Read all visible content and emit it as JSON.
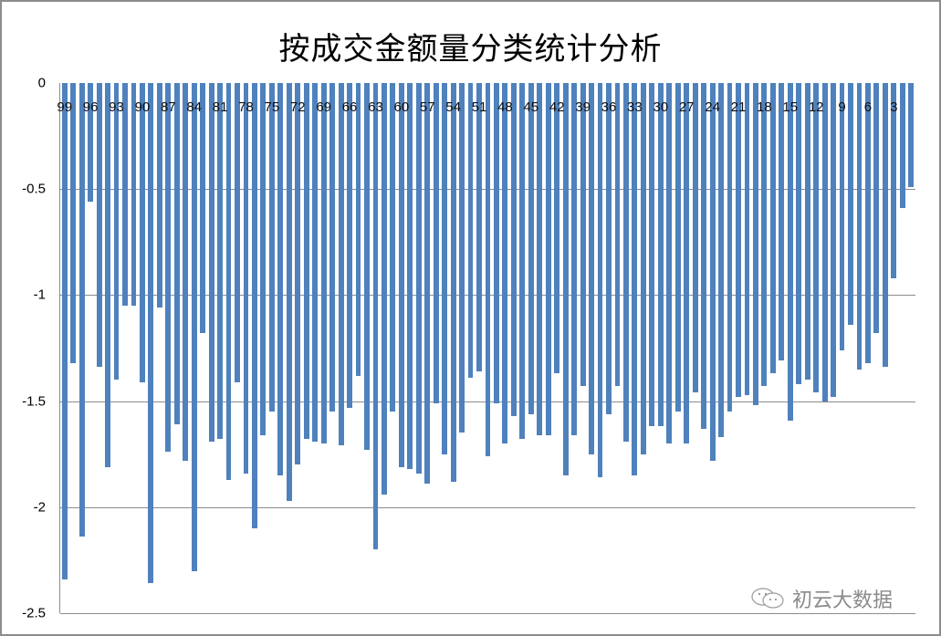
{
  "chart_data": {
    "type": "bar",
    "title": "按成交金额量分类统计分析",
    "xlabel": "",
    "ylabel": "",
    "ylim": [
      -2.5,
      0
    ],
    "yticks": [
      0,
      -0.5,
      -1,
      -1.5,
      -2,
      -2.5
    ],
    "grid": true,
    "legend": "none",
    "bar_color": "#4f81bd",
    "x_tick_labels_shown": [
      "99",
      "96",
      "93",
      "90",
      "87",
      "84",
      "81",
      "78",
      "75",
      "72",
      "69",
      "66",
      "63",
      "60",
      "57",
      "54",
      "51",
      "48",
      "45",
      "42",
      "39",
      "36",
      "33",
      "30",
      "27",
      "24",
      "21",
      "18",
      "15",
      "12",
      "9",
      "6",
      "3"
    ],
    "categories": [
      99,
      98,
      97,
      96,
      95,
      94,
      93,
      92,
      91,
      90,
      89,
      88,
      87,
      86,
      85,
      84,
      83,
      82,
      81,
      80,
      79,
      78,
      77,
      76,
      75,
      74,
      73,
      72,
      71,
      70,
      69,
      68,
      67,
      66,
      65,
      64,
      63,
      62,
      61,
      60,
      59,
      58,
      57,
      56,
      55,
      54,
      53,
      52,
      51,
      50,
      49,
      48,
      47,
      46,
      45,
      44,
      43,
      42,
      41,
      40,
      39,
      38,
      37,
      36,
      35,
      34,
      33,
      32,
      31,
      30,
      29,
      28,
      27,
      26,
      25,
      24,
      23,
      22,
      21,
      20,
      19,
      18,
      17,
      16,
      15,
      14,
      13,
      12,
      11,
      10,
      9,
      8,
      7,
      6,
      5,
      4,
      3,
      2,
      1
    ],
    "values": [
      -2.34,
      -1.32,
      -2.14,
      -0.56,
      -1.34,
      -1.81,
      -1.4,
      -1.05,
      -1.05,
      -1.41,
      -2.36,
      -1.06,
      -1.74,
      -1.61,
      -1.78,
      -2.3,
      -1.18,
      -1.69,
      -1.68,
      -1.87,
      -1.41,
      -1.84,
      -2.1,
      -1.66,
      -1.55,
      -1.85,
      -1.97,
      -1.8,
      -1.68,
      -1.69,
      -1.7,
      -1.55,
      -1.71,
      -1.53,
      -1.38,
      -1.73,
      -2.2,
      -1.94,
      -1.55,
      -1.81,
      -1.82,
      -1.84,
      -1.89,
      -1.51,
      -1.75,
      -1.88,
      -1.65,
      -1.39,
      -1.36,
      -1.76,
      -1.51,
      -1.7,
      -1.57,
      -1.68,
      -1.56,
      -1.66,
      -1.66,
      -1.37,
      -1.85,
      -1.66,
      -1.43,
      -1.75,
      -1.86,
      -1.56,
      -1.43,
      -1.69,
      -1.85,
      -1.75,
      -1.62,
      -1.62,
      -1.7,
      -1.55,
      -1.7,
      -1.46,
      -1.63,
      -1.78,
      -1.67,
      -1.55,
      -1.48,
      -1.47,
      -1.52,
      -1.43,
      -1.37,
      -1.31,
      -1.59,
      -1.42,
      -1.4,
      -1.46,
      -1.5,
      -1.48,
      -1.26,
      -1.14,
      -1.35,
      -1.32,
      -1.18,
      -1.34,
      -0.92,
      -0.59,
      -0.49
    ]
  },
  "watermark": {
    "text": "初云大数据",
    "icon": "wechat-icon"
  }
}
